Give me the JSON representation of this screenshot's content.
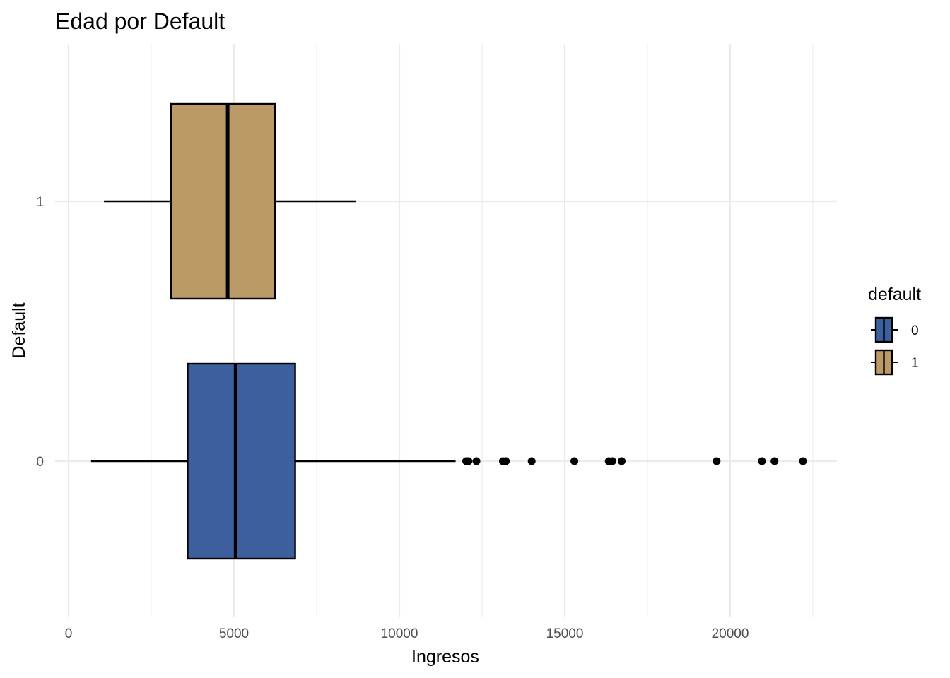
{
  "chart_data": {
    "type": "boxplot",
    "orientation": "horizontal",
    "title": "Edad por Default",
    "xlabel": "Ingresos",
    "ylabel": "Default",
    "xlim": [
      -400,
      23200
    ],
    "x_ticks": [
      0,
      5000,
      10000,
      15000,
      20000
    ],
    "x_tick_labels": [
      "0",
      "5000",
      "10000",
      "15000",
      "20000"
    ],
    "categories": [
      "0",
      "1"
    ],
    "grid": true,
    "legend": {
      "title": "default",
      "position": "right",
      "entries": [
        {
          "label": "0",
          "color": "#3d5f9e"
        },
        {
          "label": "1",
          "color": "#bb9a67"
        }
      ]
    },
    "series": [
      {
        "category": "0",
        "color": "#3d5f9e",
        "whisker_low": 680,
        "q1": 3600,
        "median": 5050,
        "q3": 6850,
        "whisker_high": 11700,
        "outliers": [
          12020,
          12090,
          12330,
          13130,
          13220,
          14000,
          15290,
          16330,
          16440,
          16720,
          19590,
          20960,
          21340,
          22200
        ]
      },
      {
        "category": "1",
        "color": "#bb9a67",
        "whisker_low": 1070,
        "q1": 3100,
        "median": 4810,
        "q3": 6240,
        "whisker_high": 8680,
        "outliers": []
      }
    ]
  }
}
